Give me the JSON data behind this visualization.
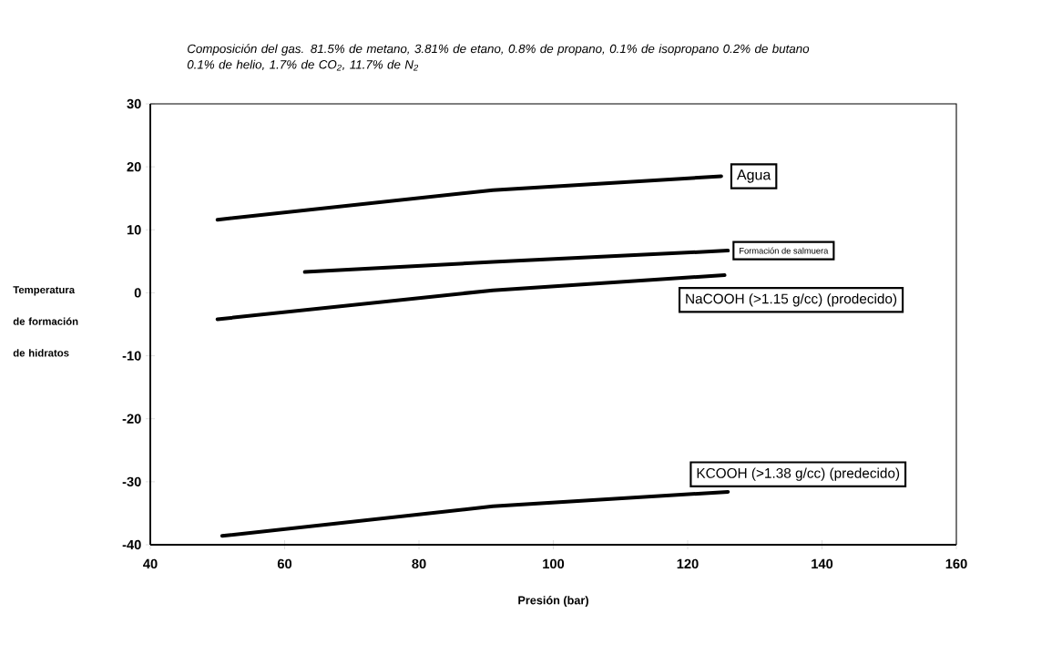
{
  "chart_data": {
    "type": "line",
    "title": "Composición del gas. 81.5% de metano, 3.81% de etano, 0.8% de propano, 0.1% de isopropano 0.2% de butano 0.1% de helio, 1.7% de CO$_{2}$, 11.7% de N$_{2}$",
    "xlabel": "Presión (bar)",
    "ylabel": "Temperatura de formación de hidratos",
    "xlim": [
      40,
      160
    ],
    "xticks": [
      40,
      60,
      80,
      100,
      120,
      140,
      160
    ],
    "ylim": [
      -40,
      30
    ],
    "yticks": [
      -40,
      -30,
      -20,
      -10,
      0,
      10,
      20,
      30
    ],
    "grid": false,
    "marker": "none",
    "line_style": "solid",
    "series": [
      {
        "name": "Agua",
        "color": "#000000",
        "x": [
          50,
          91,
          125
        ],
        "values": [
          11.6,
          16.3,
          18.5
        ]
      },
      {
        "name": "Formación de salmuera",
        "color": "#000000",
        "x": [
          63,
          91,
          126
        ],
        "values": [
          3.3,
          4.9,
          6.7
        ]
      },
      {
        "name": "NaCOOH (>1.15 g/cc) (prodecido)",
        "color": "#000000",
        "x": [
          50,
          91,
          125.5
        ],
        "values": [
          -4.2,
          0.4,
          2.8
        ]
      },
      {
        "name": "KCOOH  (>1.38 g/cc) (predecido)",
        "color": "#000000",
        "x": [
          50.7,
          91,
          126
        ],
        "values": [
          -38.6,
          -33.9,
          -31.6
        ]
      }
    ]
  }
}
